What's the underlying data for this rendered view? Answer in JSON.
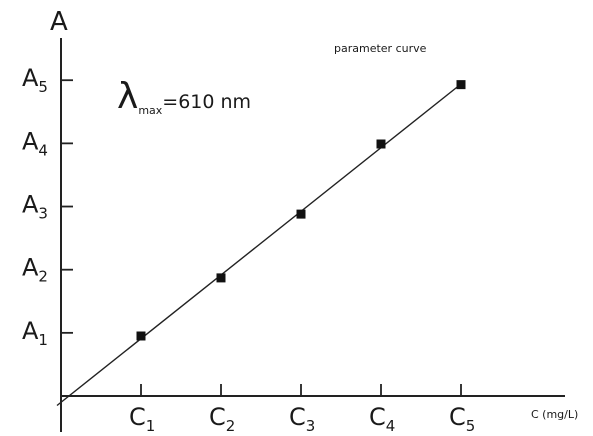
{
  "chart_data": {
    "type": "line",
    "title": "",
    "xlabel": "C (mg/L)",
    "ylabel": "A",
    "x_tick_labels": [
      {
        "main": "C",
        "sub": "1"
      },
      {
        "main": "C",
        "sub": "2"
      },
      {
        "main": "C",
        "sub": "3"
      },
      {
        "main": "C",
        "sub": "4"
      },
      {
        "main": "C",
        "sub": "5"
      }
    ],
    "y_tick_labels": [
      {
        "main": "A",
        "sub": "1"
      },
      {
        "main": "A",
        "sub": "2"
      },
      {
        "main": "A",
        "sub": "3"
      },
      {
        "main": "A",
        "sub": "4"
      },
      {
        "main": "A",
        "sub": "5"
      }
    ],
    "x": [
      1,
      2,
      3,
      4,
      5
    ],
    "series": [
      {
        "name": "parameter curve",
        "values": [
          0.95,
          1.87,
          2.88,
          3.99,
          4.93
        ]
      }
    ],
    "xlim": [
      0,
      6.3
    ],
    "ylim": [
      0,
      5.7
    ],
    "grid": false,
    "legend": "none",
    "annotations": {
      "curve_label": "parameter curve",
      "lambda_symbol": "λ",
      "lambda_sub": "max",
      "lambda_value": "=610 nm"
    }
  }
}
